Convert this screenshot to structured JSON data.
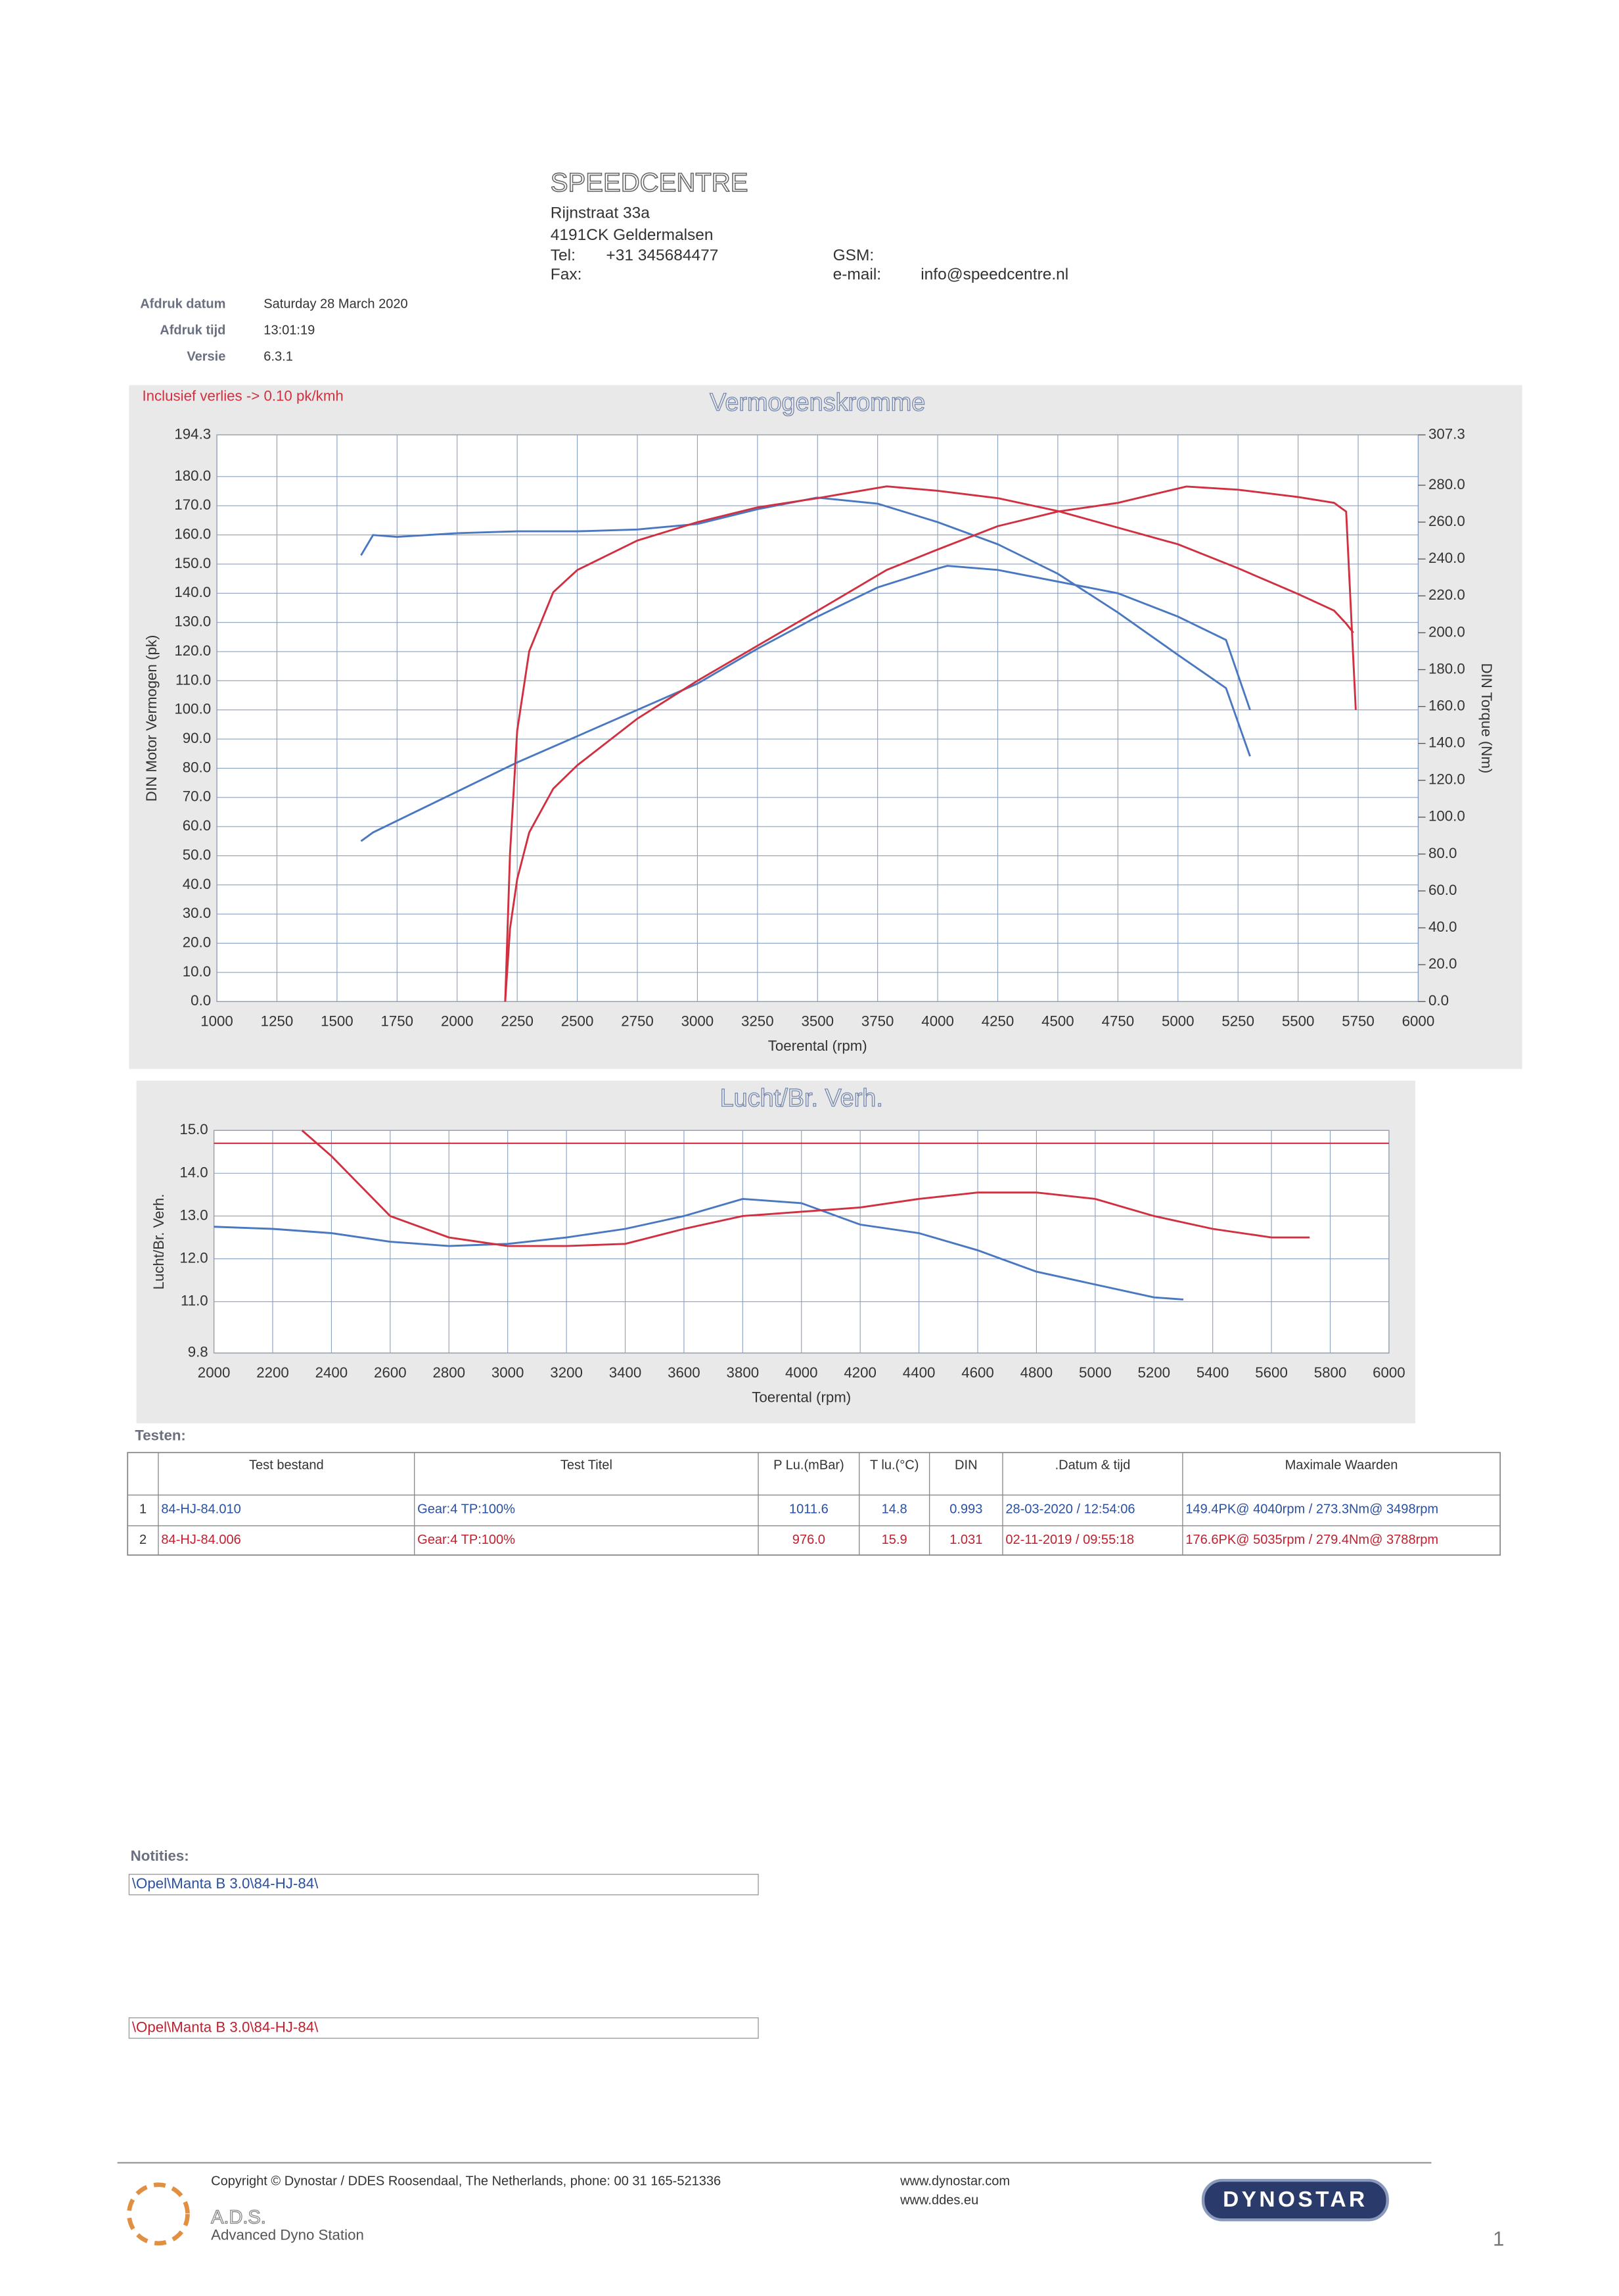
{
  "header": {
    "company": "SPEEDCENTRE",
    "address": [
      "Rijnstraat 33a",
      "4191CK Geldermalsen"
    ],
    "tel_label": "Tel:",
    "tel": "+31 345684477",
    "fax_label": "Fax:",
    "gsm_label": "GSM:",
    "email_label": "e-mail:",
    "email": "info@speedcentre.nl"
  },
  "print_info": [
    {
      "label": "Afdruk datum",
      "value": "Saturday 28 March 2020"
    },
    {
      "label": "Afdruk tijd",
      "value": "13:01:19"
    },
    {
      "label": "Versie",
      "value": "6.3.1"
    }
  ],
  "chart_data": [
    {
      "type": "line",
      "title": "Vermogenskromme",
      "annotation": "Inclusief verlies -> 0.10 pk/kmh",
      "x_label": "Toerental (rpm)",
      "y_label": "DIN Motor Vermogen (pk)",
      "y2_label": "DIN Torque (Nm)",
      "grid": true,
      "xlim": [
        1000,
        6000
      ],
      "xticks": [
        1000,
        1250,
        1500,
        1750,
        2000,
        2250,
        2500,
        2750,
        3000,
        3250,
        3500,
        3750,
        4000,
        4250,
        4500,
        4750,
        5000,
        5250,
        5500,
        5750,
        6000
      ],
      "ylim": [
        0,
        194.3
      ],
      "yticks": [
        {
          "value": 0,
          "label": "0.0"
        },
        {
          "value": 10,
          "label": "10.0"
        },
        {
          "value": 20,
          "label": "20.0"
        },
        {
          "value": 30,
          "label": "30.0"
        },
        {
          "value": 40,
          "label": "40.0"
        },
        {
          "value": 50,
          "label": "50.0"
        },
        {
          "value": 60,
          "label": "60.0"
        },
        {
          "value": 70,
          "label": "70.0"
        },
        {
          "value": 80,
          "label": "80.0"
        },
        {
          "value": 90,
          "label": "90.0"
        },
        {
          "value": 100,
          "label": "100.0"
        },
        {
          "value": 110,
          "label": "110.0"
        },
        {
          "value": 120,
          "label": "120.0"
        },
        {
          "value": 130,
          "label": "130.0"
        },
        {
          "value": 140,
          "label": "140.0"
        },
        {
          "value": 150,
          "label": "150.0"
        },
        {
          "value": 160,
          "label": "160.0"
        },
        {
          "value": 170,
          "label": "170.0"
        },
        {
          "value": 180,
          "label": "180.0"
        },
        194.3
      ],
      "y2lim": [
        0,
        307.3
      ],
      "y2ticks": [
        {
          "value": 0,
          "label": "0.0"
        },
        {
          "value": 20,
          "label": "20.0"
        },
        {
          "value": 40,
          "label": "40.0"
        },
        {
          "value": 60,
          "label": "60.0"
        },
        {
          "value": 80,
          "label": "80.0"
        },
        {
          "value": 100,
          "label": "100.0"
        },
        {
          "value": 120,
          "label": "120.0"
        },
        {
          "value": 140,
          "label": "140.0"
        },
        {
          "value": 160,
          "label": "160.0"
        },
        {
          "value": 180,
          "label": "180.0"
        },
        {
          "value": 200,
          "label": "200.0"
        },
        {
          "value": 220,
          "label": "220.0"
        },
        {
          "value": 240,
          "label": "240.0"
        },
        {
          "value": 260,
          "label": "260.0"
        },
        {
          "value": 280,
          "label": "280.0"
        },
        307.3
      ],
      "series": [
        {
          "color": "#4a78c0",
          "x": [
            1600,
            1650,
            1750,
            2000,
            2250,
            2500,
            2750,
            3000,
            3250,
            3500,
            3750,
            4000,
            4040,
            4250,
            4500,
            4750,
            5000,
            5200,
            5300
          ],
          "values": [
            55,
            58,
            62,
            72,
            82,
            91,
            100,
            109,
            121,
            132,
            142,
            148.5,
            149.4,
            148,
            144,
            140,
            132,
            124,
            100
          ]
        },
        {
          "color": "#4a78c0",
          "axis": "y2",
          "x": [
            1600,
            1650,
            1750,
            2000,
            2250,
            2500,
            2750,
            3000,
            3250,
            3498,
            3750,
            4000,
            4250,
            4500,
            4750,
            5000,
            5200,
            5300
          ],
          "values": [
            242,
            253,
            252,
            254,
            255,
            255,
            256,
            259,
            267,
            273.3,
            270,
            260,
            248,
            232,
            211,
            188,
            170,
            133
          ]
        },
        {
          "color": "#d03040",
          "x": [
            2200,
            2220,
            2250,
            2300,
            2400,
            2500,
            2750,
            3000,
            3250,
            3500,
            3788,
            4000,
            4250,
            4500,
            4750,
            5035,
            5250,
            5500,
            5650,
            5700,
            5740
          ],
          "values": [
            0,
            25,
            42,
            58,
            73,
            81,
            97,
            110,
            122,
            134,
            148,
            155,
            163,
            168,
            171,
            176.6,
            175.5,
            173,
            171,
            168,
            100
          ]
        },
        {
          "color": "#d03040",
          "axis": "y2",
          "x": [
            2200,
            2220,
            2250,
            2300,
            2400,
            2500,
            2750,
            3000,
            3250,
            3500,
            3788,
            4000,
            4250,
            4500,
            4750,
            5000,
            5250,
            5500,
            5650,
            5700,
            5730
          ],
          "values": [
            0,
            80,
            147,
            190,
            222,
            234,
            250,
            260,
            268,
            273,
            279.4,
            277,
            273,
            266,
            257,
            248,
            235,
            221,
            212,
            205,
            200
          ]
        }
      ]
    },
    {
      "type": "line",
      "title": "Lucht/Br. Verh.",
      "x_label": "Toerental (rpm)",
      "y_label": "Lucht/Br. Verh.",
      "grid": true,
      "xlim": [
        2000,
        6000
      ],
      "xticks": [
        2000,
        2200,
        2400,
        2600,
        2800,
        3000,
        3200,
        3400,
        3600,
        3800,
        4000,
        4200,
        4400,
        4600,
        4800,
        5000,
        5200,
        5400,
        5600,
        5800,
        6000
      ],
      "ylim": [
        9.8,
        15
      ],
      "yticks": [
        9.8,
        {
          "value": 11,
          "label": "11.0"
        },
        {
          "value": 12,
          "label": "12.0"
        },
        {
          "value": 13,
          "label": "13.0"
        },
        {
          "value": 14,
          "label": "14.0"
        },
        {
          "value": 15,
          "label": "15.0"
        }
      ],
      "reference_line": 14.7,
      "reference_color": "#d03040",
      "series": [
        {
          "color": "#4a78c0",
          "x": [
            2000,
            2200,
            2400,
            2600,
            2800,
            3000,
            3200,
            3400,
            3600,
            3800,
            4000,
            4200,
            4400,
            4600,
            4800,
            5000,
            5200,
            5300
          ],
          "values": [
            12.75,
            12.7,
            12.6,
            12.4,
            12.3,
            12.35,
            12.5,
            12.7,
            13.0,
            13.4,
            13.3,
            12.8,
            12.6,
            12.2,
            11.7,
            11.4,
            11.1,
            11.05
          ]
        },
        {
          "color": "#d03040",
          "x": [
            2300,
            2400,
            2600,
            2800,
            3000,
            3200,
            3400,
            3600,
            3800,
            4000,
            4200,
            4400,
            4600,
            4800,
            5000,
            5200,
            5400,
            5600,
            5730
          ],
          "values": [
            15.0,
            14.4,
            13.0,
            12.5,
            12.3,
            12.3,
            12.35,
            12.7,
            13.0,
            13.1,
            13.2,
            13.4,
            13.55,
            13.55,
            13.4,
            13.0,
            12.7,
            12.5,
            12.5
          ]
        }
      ]
    }
  ],
  "table": {
    "title": "Testen:",
    "columns": [
      "Test bestand",
      "Test Titel",
      "P Lu.(mBar)",
      "T lu.(°C)",
      "DIN",
      ".Datum & tijd",
      "Maximale Waarden"
    ],
    "rows": [
      [
        "1",
        "84-HJ-84.010",
        "Gear:4 TP:100%",
        "1011.6",
        "14.8",
        "0.993",
        "28-03-2020 / 12:54:06",
        "149.4PK@ 4040rpm / 273.3Nm@ 3498rpm"
      ],
      [
        "2",
        "84-HJ-84.006",
        "Gear:4 TP:100%",
        "976.0",
        "15.9",
        "1.031",
        "02-11-2019 / 09:55:18",
        "176.6PK@ 5035rpm / 279.4Nm@ 3788rpm"
      ]
    ]
  },
  "notes": {
    "title": "Notities:",
    "entries": [
      "\\Opel\\Manta B 3.0\\84-HJ-84\\",
      "\\Opel\\Manta B 3.0\\84-HJ-84\\"
    ]
  },
  "footer": {
    "copyright": "Copyright © Dynostar / DDES Roosendaal, The Netherlands, phone: 00 31 165-521336",
    "links": [
      "www.dynostar.com",
      "www.ddes.eu"
    ],
    "brand": "A.D.S.",
    "brand_sub": "Advanced Dyno Station",
    "logo": "DYNOSTAR",
    "page": "1"
  }
}
